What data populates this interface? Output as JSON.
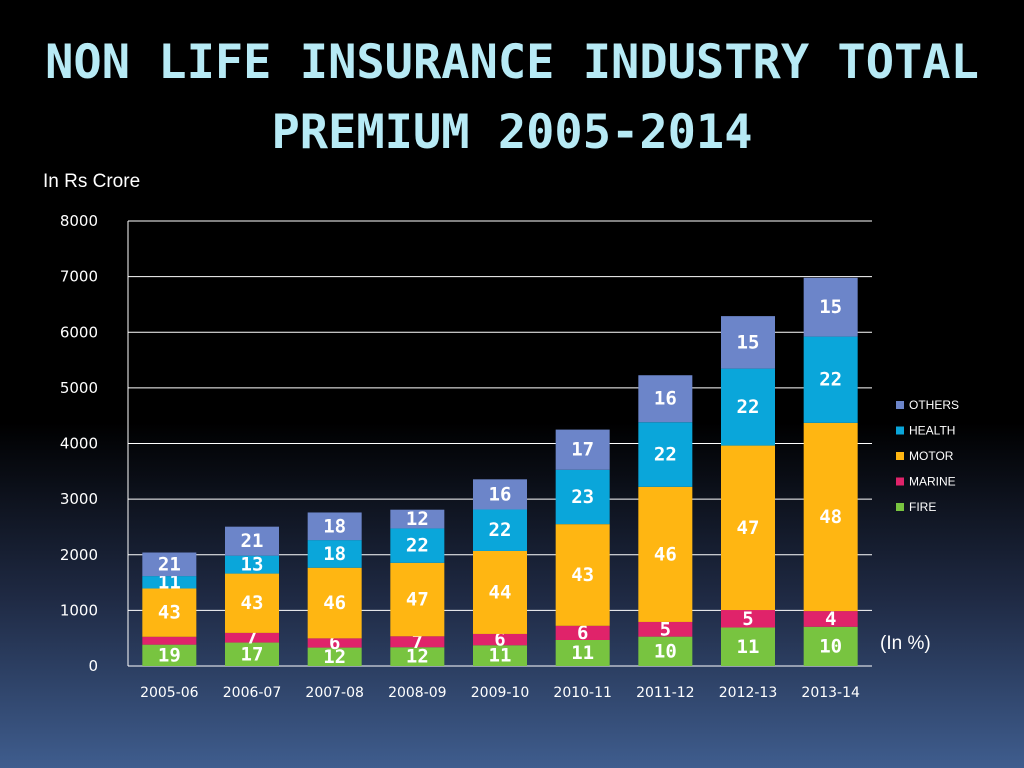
{
  "chart_data": {
    "type": "bar",
    "stacked": true,
    "title": "NON LIFE INSURANCE INDUSTRY TOTAL PREMIUM 2005-2014",
    "ylabel": "In Rs Crore",
    "annotation": "(In %)",
    "ylim": [
      0,
      8000
    ],
    "yticks": [
      0,
      1000,
      2000,
      3000,
      4000,
      5000,
      6000,
      7000,
      8000
    ],
    "grid": true,
    "legend_position": "right",
    "categories": [
      "2005-06",
      "2006-07",
      "2007-08",
      "2008-09",
      "2009-10",
      "2010-11",
      "2011-12",
      "2012-13",
      "2013-14"
    ],
    "totals": [
      2020,
      2480,
      2760,
      2810,
      3390,
      4250,
      5280,
      6290,
      7050
    ],
    "series": [
      {
        "name": "FIRE",
        "color": "#78c440",
        "share_pct": [
          19,
          17,
          12,
          12,
          11,
          11,
          10,
          11,
          10
        ]
      },
      {
        "name": "MARINE",
        "color": "#e0236a",
        "share_pct": [
          7,
          7,
          6,
          7,
          6,
          6,
          5,
          5,
          4
        ]
      },
      {
        "name": "MOTOR",
        "color": "#ffb612",
        "share_pct": [
          43,
          43,
          46,
          47,
          44,
          43,
          46,
          47,
          48
        ]
      },
      {
        "name": "HEALTH",
        "color": "#0aa6da",
        "share_pct": [
          11,
          13,
          18,
          22,
          22,
          23,
          22,
          22,
          22
        ]
      },
      {
        "name": "OTHERS",
        "color": "#6c85c9",
        "share_pct": [
          21,
          21,
          18,
          12,
          16,
          17,
          16,
          15,
          15
        ]
      }
    ],
    "segment_labels": [
      [
        "19",
        "",
        "43",
        "11",
        "21"
      ],
      [
        "17",
        "7",
        "43",
        "13",
        "21"
      ],
      [
        "12",
        "6",
        "46",
        "18",
        "18"
      ],
      [
        "12",
        "7",
        "47",
        "22",
        "12"
      ],
      [
        "11",
        "6",
        "44",
        "22",
        "16"
      ],
      [
        "11",
        "6",
        "43",
        "23",
        "17"
      ],
      [
        "10",
        "5",
        "46",
        "22",
        "16"
      ],
      [
        "11",
        "5",
        "47",
        "22",
        "15"
      ],
      [
        "10",
        "4",
        "48",
        "22",
        "15"
      ]
    ]
  },
  "legend_order": [
    "OTHERS",
    "HEALTH",
    "MOTOR",
    "MARINE",
    "FIRE"
  ]
}
